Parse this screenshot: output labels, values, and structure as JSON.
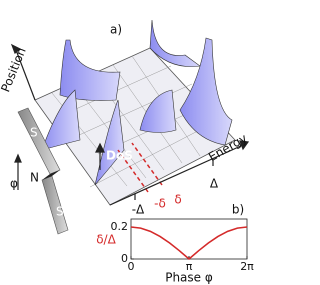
{
  "panel_a": {
    "label": "a)",
    "position_axis": "Position",
    "energy_axis": "Energy",
    "dos_label": "DoS",
    "junction": [
      "S",
      "N",
      "S"
    ],
    "phase_symbol": "φ",
    "energy_ticks": [
      "-Δ",
      "-δ",
      "δ",
      "Δ"
    ]
  },
  "chart_data": {
    "type": "line",
    "panel_label": "b)",
    "x_label": "Phase φ",
    "y_label": "δ/Δ",
    "x": [
      0,
      0.524,
      1.047,
      1.571,
      2.094,
      2.618,
      3.142,
      3.665,
      4.189,
      4.712,
      5.236,
      5.76,
      6.283
    ],
    "values": [
      0.2,
      0.193,
      0.173,
      0.141,
      0.1,
      0.052,
      0,
      0.052,
      0.1,
      0.141,
      0.173,
      0.193,
      0.2
    ],
    "color": "#d42a2a",
    "xlim": [
      0,
      6.283
    ],
    "xticks": [
      0,
      {
        "value": 3.142,
        "label": "π"
      },
      {
        "value": 6.283,
        "label": "2π"
      }
    ],
    "ylim": [
      0,
      0.25
    ],
    "yticks": [
      0,
      0.2
    ]
  }
}
